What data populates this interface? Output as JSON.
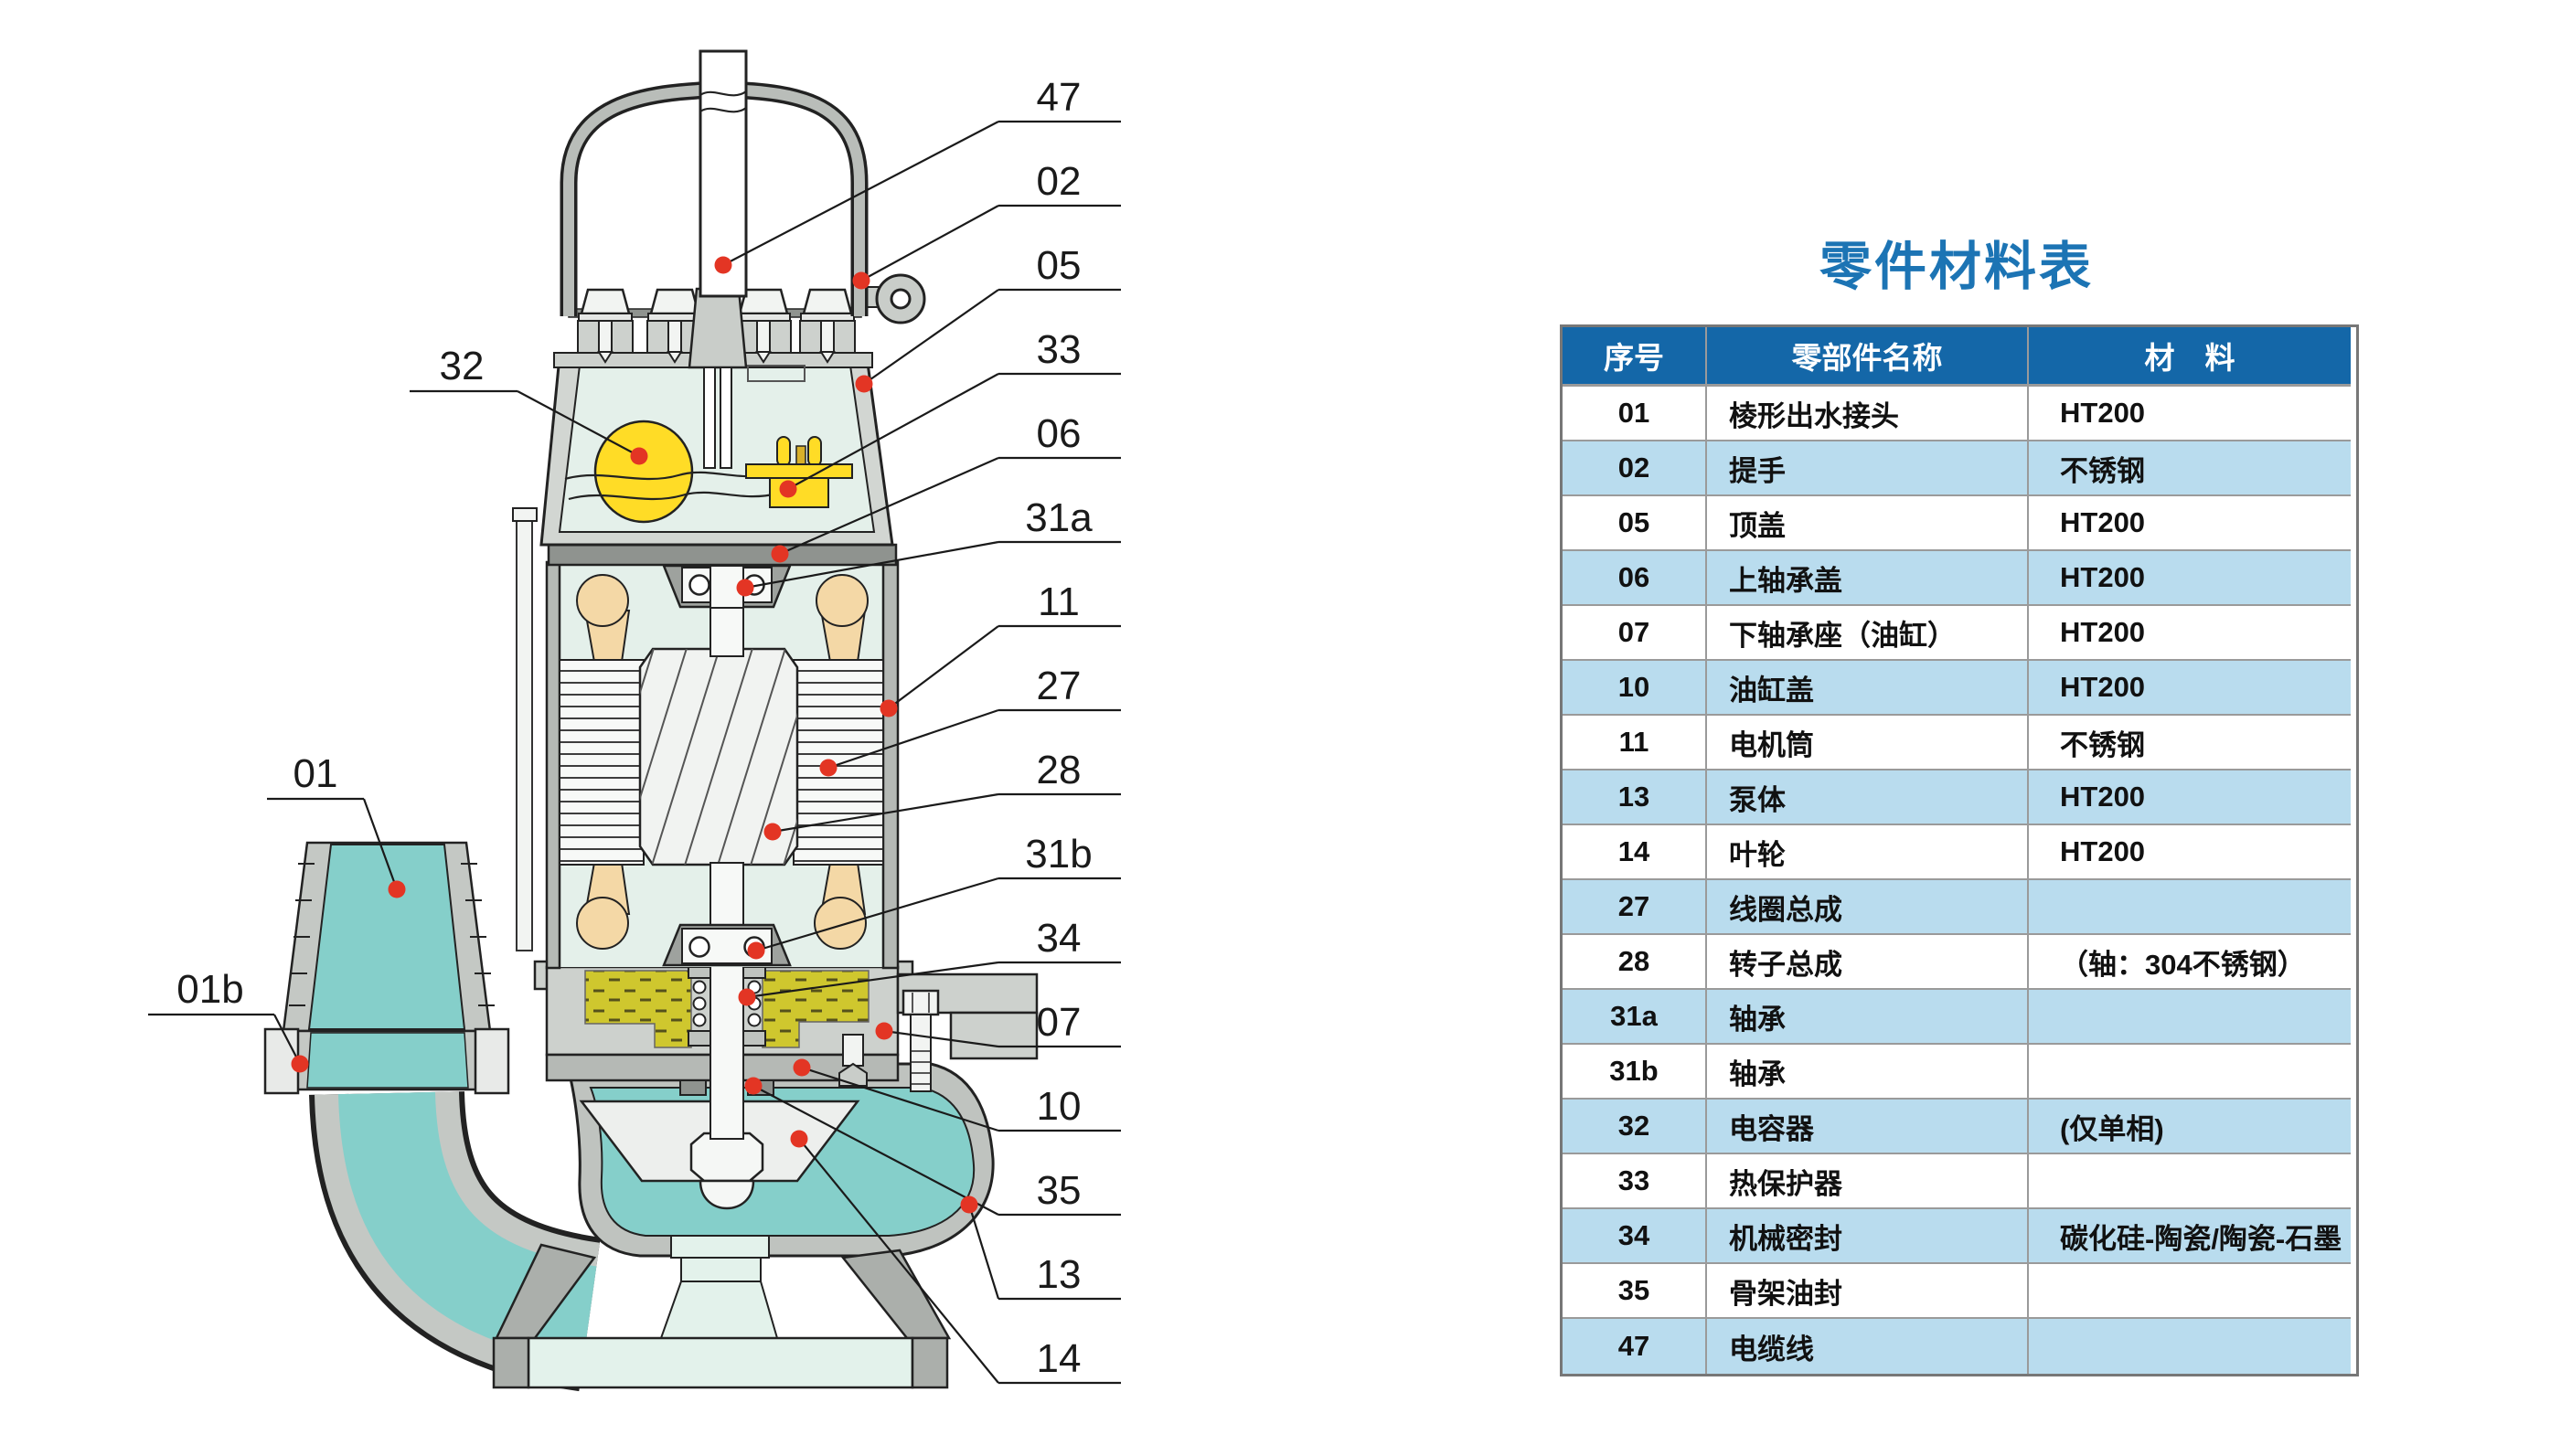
{
  "table": {
    "title": "零件材料表",
    "headers": [
      "序号",
      "零部件名称",
      "材　料"
    ],
    "rows": [
      {
        "no": "01",
        "name": "棱形出水接头",
        "material": "HT200",
        "shaded": false
      },
      {
        "no": "02",
        "name": "提手",
        "material": "不锈钢",
        "shaded": true
      },
      {
        "no": "05",
        "name": "顶盖",
        "material": "HT200",
        "shaded": false
      },
      {
        "no": "06",
        "name": "上轴承盖",
        "material": "HT200",
        "shaded": true
      },
      {
        "no": "07",
        "name": "下轴承座（油缸）",
        "material": "HT200",
        "shaded": false
      },
      {
        "no": "10",
        "name": "油缸盖",
        "material": "HT200",
        "shaded": true
      },
      {
        "no": "11",
        "name": "电机筒",
        "material": "不锈钢",
        "shaded": false
      },
      {
        "no": "13",
        "name": "泵体",
        "material": "HT200",
        "shaded": true
      },
      {
        "no": "14",
        "name": "叶轮",
        "material": "HT200",
        "shaded": false
      },
      {
        "no": "27",
        "name": "线圈总成",
        "material": "",
        "shaded": true
      },
      {
        "no": "28",
        "name": "转子总成",
        "material": "（轴：304不锈钢）",
        "shaded": false
      },
      {
        "no": "31a",
        "name": "轴承",
        "material": "",
        "shaded": true
      },
      {
        "no": "31b",
        "name": "轴承",
        "material": "",
        "shaded": false
      },
      {
        "no": "32",
        "name": "电容器",
        "material": "(仅单相)",
        "shaded": true
      },
      {
        "no": "33",
        "name": "热保护器",
        "material": "",
        "shaded": false
      },
      {
        "no": "34",
        "name": "机械密封",
        "material": "碳化硅-陶瓷/陶瓷-石墨",
        "shaded": true
      },
      {
        "no": "35",
        "name": "骨架油封",
        "material": "",
        "shaded": false
      },
      {
        "no": "47",
        "name": "电缆线",
        "material": "",
        "shaded": true
      }
    ]
  },
  "diagram": {
    "callouts": {
      "right": [
        "47",
        "02",
        "05",
        "33",
        "06",
        "31a",
        "11",
        "27",
        "28",
        "31b",
        "34",
        "07",
        "10",
        "35",
        "13",
        "14"
      ],
      "left": [
        "32",
        "01",
        "01b"
      ]
    }
  },
  "theme": {
    "header_bg": "#1467A8",
    "row_alt": "#B9DCEE",
    "title_color": "#1C74B4",
    "border_color": "#9A9A9A",
    "dot_color": "#E33524",
    "mint": "#E4F0EA",
    "mint2": "#E3F2EB",
    "teal": "#85CFCA",
    "tan": "#F4D8A6",
    "yellow": "#FFDC26",
    "oil": "#CFC72E",
    "ink": "#111111"
  }
}
